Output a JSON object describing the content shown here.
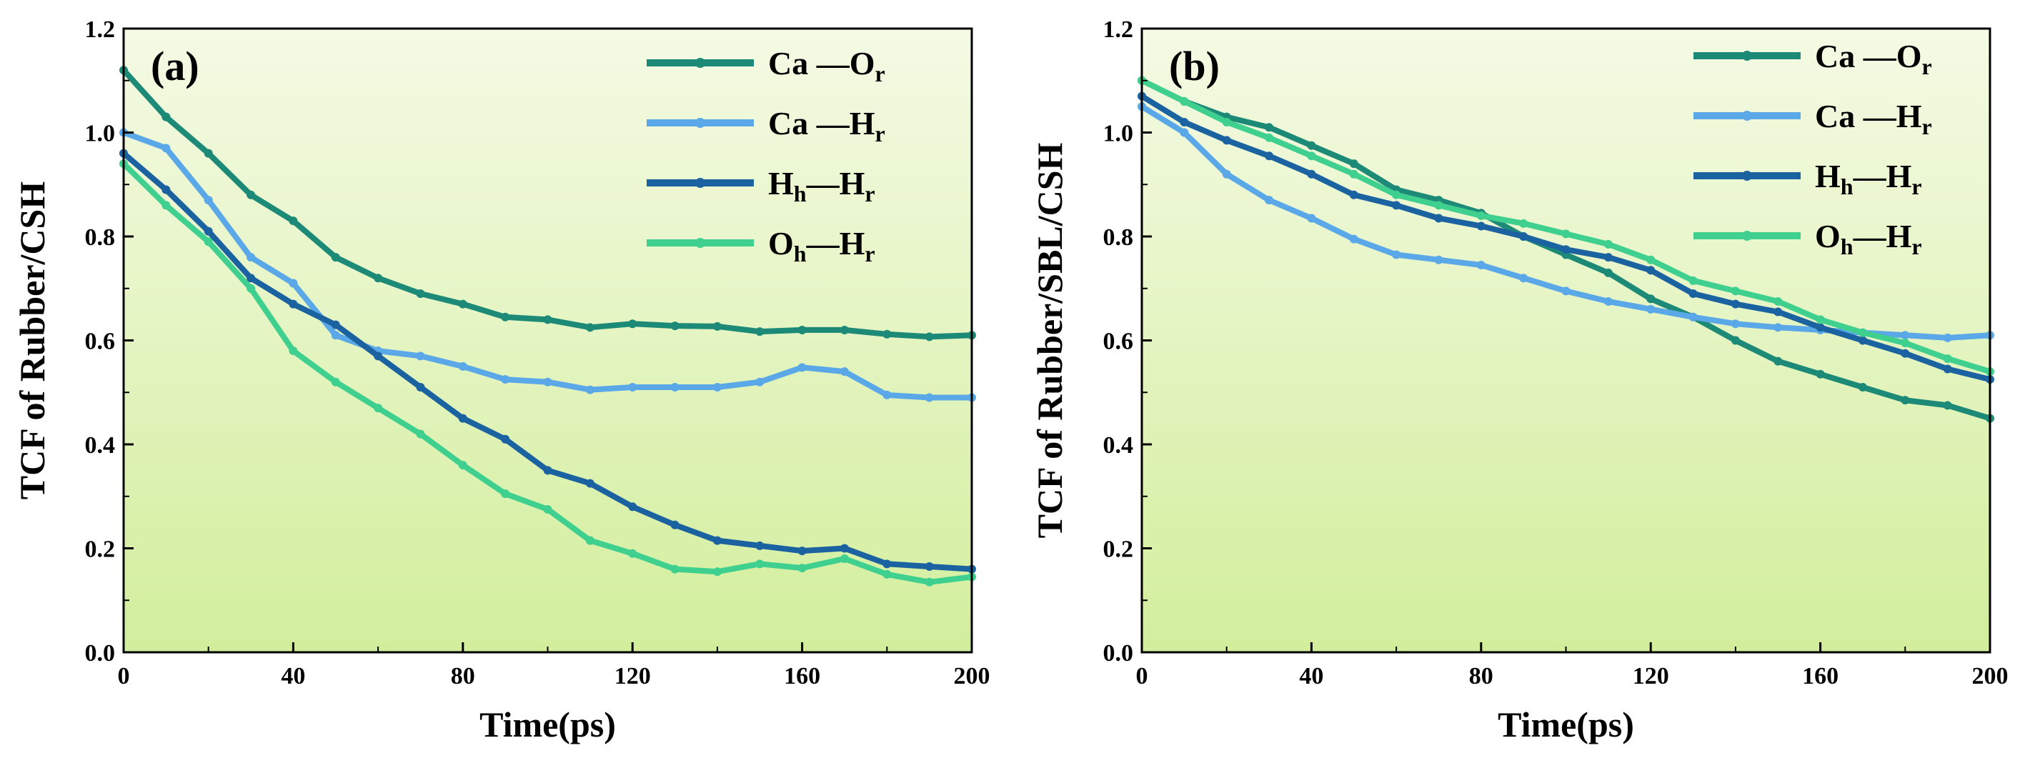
{
  "chart_data": [
    {
      "type": "line",
      "panel_label": "(a)",
      "xlabel": "Time(ps)",
      "ylabel": "TCF of Rubber/CSH",
      "xlim": [
        0,
        200
      ],
      "ylim": [
        0,
        1.2
      ],
      "xticks": [
        "0",
        "40",
        "80",
        "120",
        "160",
        "200"
      ],
      "yticks": [
        "0.0",
        "0.2",
        "0.4",
        "0.6",
        "0.8",
        "1.0",
        "1.2"
      ],
      "legend_position": "top-right",
      "grid": false,
      "series": [
        {
          "name": "Ca —O",
          "sub": "r",
          "color": "#1d8a78",
          "x": [
            0,
            10,
            20,
            30,
            40,
            50,
            60,
            70,
            80,
            90,
            100,
            110,
            120,
            130,
            140,
            150,
            160,
            170,
            180,
            190,
            200
          ],
          "y": [
            1.12,
            1.03,
            0.96,
            0.88,
            0.83,
            0.76,
            0.72,
            0.69,
            0.67,
            0.645,
            0.64,
            0.625,
            0.632,
            0.628,
            0.627,
            0.617,
            0.62,
            0.62,
            0.612,
            0.607,
            0.61
          ]
        },
        {
          "name": "Ca —H",
          "sub": "r",
          "color": "#5aa8e8",
          "x": [
            0,
            10,
            20,
            30,
            40,
            50,
            60,
            70,
            80,
            90,
            100,
            110,
            120,
            130,
            140,
            150,
            160,
            170,
            180,
            190,
            200
          ],
          "y": [
            1.0,
            0.97,
            0.87,
            0.76,
            0.71,
            0.61,
            0.58,
            0.57,
            0.55,
            0.525,
            0.52,
            0.505,
            0.51,
            0.51,
            0.51,
            0.52,
            0.548,
            0.54,
            0.495,
            0.49,
            0.49
          ]
        },
        {
          "name": "H",
          "sub_h": "h",
          "name2": "—H",
          "sub": "r",
          "color": "#1b63a0",
          "x": [
            0,
            10,
            20,
            30,
            40,
            50,
            60,
            70,
            80,
            90,
            100,
            110,
            120,
            130,
            140,
            150,
            160,
            170,
            180,
            190,
            200
          ],
          "y": [
            0.96,
            0.89,
            0.81,
            0.72,
            0.67,
            0.63,
            0.57,
            0.51,
            0.45,
            0.41,
            0.35,
            0.325,
            0.28,
            0.245,
            0.215,
            0.205,
            0.195,
            0.2,
            0.17,
            0.165,
            0.16
          ]
        },
        {
          "name": "O",
          "sub_h": "h",
          "name2": "—H",
          "sub": "r",
          "color": "#3fd08f",
          "x": [
            0,
            10,
            20,
            30,
            40,
            50,
            60,
            70,
            80,
            90,
            100,
            110,
            120,
            130,
            140,
            150,
            160,
            170,
            180,
            190,
            200
          ],
          "y": [
            0.94,
            0.86,
            0.79,
            0.7,
            0.58,
            0.52,
            0.47,
            0.42,
            0.36,
            0.305,
            0.275,
            0.215,
            0.19,
            0.16,
            0.155,
            0.17,
            0.162,
            0.18,
            0.15,
            0.135,
            0.145
          ]
        }
      ]
    },
    {
      "type": "line",
      "panel_label": "(b)",
      "xlabel": "Time(ps)",
      "ylabel": "TCF of Rubber/SBL/CSH",
      "xlim": [
        0,
        200
      ],
      "ylim": [
        0,
        1.2
      ],
      "xticks": [
        "0",
        "40",
        "80",
        "120",
        "160",
        "200"
      ],
      "yticks": [
        "0.0",
        "0.2",
        "0.4",
        "0.6",
        "0.8",
        "1.0",
        "1.2"
      ],
      "legend_position": "top-right",
      "grid": false,
      "series": [
        {
          "name": "Ca —O",
          "sub": "r",
          "color": "#1d8a78",
          "x": [
            0,
            10,
            20,
            30,
            40,
            50,
            60,
            70,
            80,
            90,
            100,
            110,
            120,
            130,
            140,
            150,
            160,
            170,
            180,
            190,
            200
          ],
          "y": [
            1.1,
            1.06,
            1.03,
            1.01,
            0.975,
            0.94,
            0.89,
            0.87,
            0.845,
            0.8,
            0.765,
            0.73,
            0.68,
            0.645,
            0.6,
            0.56,
            0.535,
            0.51,
            0.485,
            0.475,
            0.45
          ]
        },
        {
          "name": "Ca —H",
          "sub": "r",
          "color": "#5aa8e8",
          "x": [
            0,
            10,
            20,
            30,
            40,
            50,
            60,
            70,
            80,
            90,
            100,
            110,
            120,
            130,
            140,
            150,
            160,
            170,
            180,
            190,
            200
          ],
          "y": [
            1.05,
            1.0,
            0.92,
            0.87,
            0.835,
            0.795,
            0.765,
            0.755,
            0.745,
            0.72,
            0.695,
            0.675,
            0.66,
            0.645,
            0.632,
            0.625,
            0.62,
            0.615,
            0.61,
            0.605,
            0.61
          ]
        },
        {
          "name": "H",
          "sub_h": "h",
          "name2": "—H",
          "sub": "r",
          "color": "#1b63a0",
          "x": [
            0,
            10,
            20,
            30,
            40,
            50,
            60,
            70,
            80,
            90,
            100,
            110,
            120,
            130,
            140,
            150,
            160,
            170,
            180,
            190,
            200
          ],
          "y": [
            1.07,
            1.02,
            0.985,
            0.955,
            0.92,
            0.88,
            0.86,
            0.835,
            0.82,
            0.8,
            0.775,
            0.76,
            0.735,
            0.69,
            0.67,
            0.655,
            0.625,
            0.6,
            0.575,
            0.545,
            0.525
          ]
        },
        {
          "name": "O",
          "sub_h": "h",
          "name2": "—H",
          "sub": "r",
          "color": "#3fd08f",
          "x": [
            0,
            10,
            20,
            30,
            40,
            50,
            60,
            70,
            80,
            90,
            100,
            110,
            120,
            130,
            140,
            150,
            160,
            170,
            180,
            190,
            200
          ],
          "y": [
            1.1,
            1.06,
            1.02,
            0.99,
            0.955,
            0.92,
            0.88,
            0.86,
            0.84,
            0.825,
            0.805,
            0.785,
            0.755,
            0.715,
            0.695,
            0.675,
            0.64,
            0.615,
            0.595,
            0.565,
            0.54
          ]
        }
      ]
    }
  ]
}
